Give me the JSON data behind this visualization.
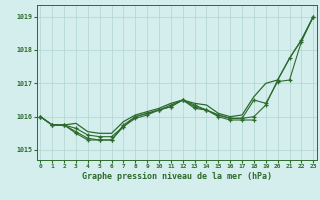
{
  "x": [
    0,
    1,
    2,
    3,
    4,
    5,
    6,
    7,
    8,
    9,
    10,
    11,
    12,
    13,
    14,
    15,
    16,
    17,
    18,
    19,
    20,
    21,
    22,
    23
  ],
  "line1": [
    1016.0,
    1015.75,
    1015.75,
    1015.8,
    1015.55,
    1015.5,
    1015.5,
    1015.85,
    1016.05,
    1016.15,
    1016.25,
    1016.4,
    1016.5,
    1016.4,
    1016.35,
    1016.1,
    1016.0,
    1016.05,
    1016.6,
    1017.0,
    1017.1,
    1017.75,
    1018.3,
    1019.0
  ],
  "line2": [
    1016.0,
    1015.75,
    1015.75,
    1015.5,
    1015.3,
    1015.3,
    1015.3,
    1015.7,
    1015.95,
    1016.05,
    1016.2,
    1016.3,
    1016.5,
    1016.25,
    1016.2,
    1016.0,
    1015.9,
    1015.9,
    1015.9,
    null,
    null,
    null,
    null,
    null
  ],
  "line3": [
    1016.0,
    1015.75,
    1015.75,
    1015.55,
    1015.35,
    1015.3,
    1015.3,
    1015.75,
    1016.0,
    1016.1,
    1016.2,
    1016.35,
    1016.5,
    1016.35,
    1016.2,
    1016.05,
    1015.95,
    1015.95,
    1016.5,
    1016.4,
    1017.05,
    1017.1,
    1018.25,
    1019.0
  ],
  "line4": [
    1016.0,
    1015.75,
    1015.75,
    1015.65,
    1015.45,
    1015.4,
    1015.4,
    1015.7,
    1016.0,
    1016.1,
    1016.2,
    1016.3,
    1016.5,
    1016.3,
    1016.2,
    1016.05,
    1015.95,
    1015.95,
    1016.0,
    1016.35,
    1017.1,
    1017.75,
    1018.3,
    1019.0
  ],
  "line_color": "#2d6a2d",
  "bg_color": "#d4eeed",
  "grid_color": "#b0d4d0",
  "ylabel_ticks": [
    1015,
    1016,
    1017,
    1018,
    1019
  ],
  "xlabel_label": "Graphe pression niveau de la mer (hPa)",
  "ylim": [
    1014.7,
    1019.35
  ],
  "xlim": [
    -0.3,
    23.3
  ]
}
